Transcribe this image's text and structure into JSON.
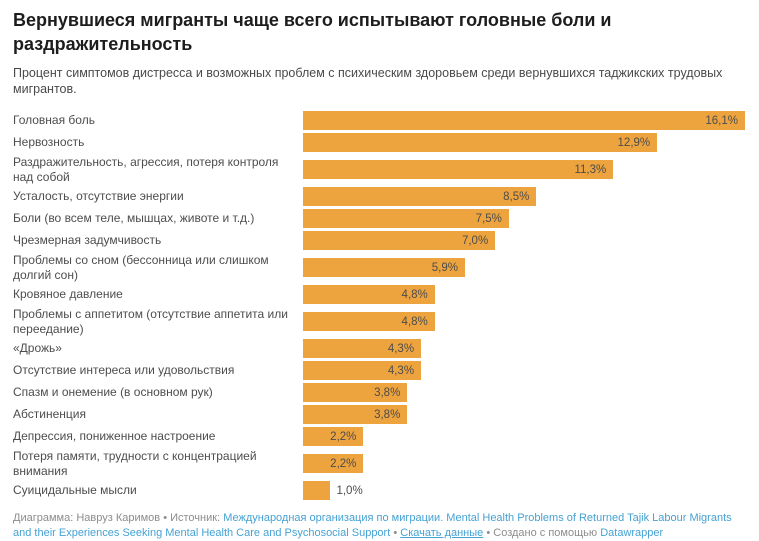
{
  "header": {
    "title": "Вернувшиеся мигранты чаще всего испытывают головные боли и раздражительность",
    "subtitle": "Процент симптомов дистресса и возможных проблем с психическим здоровьем среди вернувшихся таджикских трудовых мигрантов."
  },
  "chart_data": {
    "type": "bar",
    "orientation": "horizontal",
    "unit": "%",
    "categories": [
      "Головная боль",
      "Нервозность",
      "Раздражительность, агрессия, потеря контроля над собой",
      "Усталость, отсутствие энергии",
      "Боли (во всем теле, мышцах, животе и т.д.)",
      "Чрезмерная задумчивость",
      "Проблемы со сном (бессонница или слишком долгий сон)",
      "Кровяное давление",
      "Проблемы с аппетитом (отсутствие аппетита или переедание)",
      "«Дрожь»",
      "Отсутствие интереса или удовольствия",
      "Спазм и онемение (в основном рук)",
      "Абстиненция",
      "Депрессия, пониженное настроение",
      "Потеря памяти, трудности с концентрацией внимания",
      "Суицидальные мысли"
    ],
    "values": [
      16.1,
      12.9,
      11.3,
      8.5,
      7.5,
      7.0,
      5.9,
      4.8,
      4.8,
      4.3,
      4.3,
      3.8,
      3.8,
      2.2,
      2.2,
      1.0
    ],
    "value_labels": [
      "16,1%",
      "12,9%",
      "11,3%",
      "8,5%",
      "7,5%",
      "7,0%",
      "5,9%",
      "4,8%",
      "4,8%",
      "4,3%",
      "4,3%",
      "3,8%",
      "3,8%",
      "2,2%",
      "2,2%",
      "1,0%"
    ],
    "xlim": [
      0,
      16.1
    ],
    "grid": false,
    "legend": false,
    "bar_color": "#eea43e"
  },
  "footer": {
    "byline": "Диаграмма: Навруз Каримов",
    "separator": "•",
    "source_label": "Источник:",
    "source_link": "Международная организация по миграции. Mental Health Problems of Returned Tajik Labour Migrants and their Experiences Seeking Mental Health Care and Psychosocial Support",
    "download_link": "Скачать данные",
    "created_with": "Создано с помощью",
    "datawrapper_link": "Datawrapper"
  },
  "colors": {
    "bar": "#eea43e",
    "title_text": "#1d1d1d",
    "body_text": "#4d4d4d",
    "footer_text": "#8c8c8c",
    "link": "#45a2d3",
    "background": "#ffffff"
  }
}
